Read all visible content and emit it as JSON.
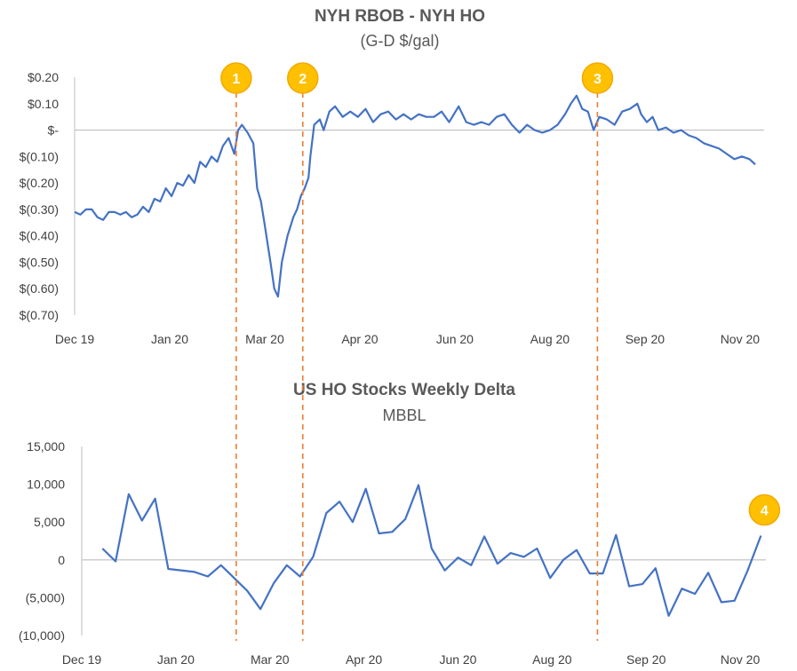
{
  "colors": {
    "line": "#4472C4",
    "marker_line": "#ED7D31",
    "badge_fill": "#FFC000",
    "badge_stroke": "#F2A900",
    "axis": "#BFBFBF",
    "text": "#595959"
  },
  "event_markers": [
    {
      "label": "1",
      "date": "2020-02-24"
    },
    {
      "label": "2",
      "date": "2020-03-30"
    },
    {
      "label": "3",
      "date": "2020-09-01"
    }
  ],
  "chart_data": [
    {
      "type": "line",
      "title": "NYH RBOB - NYH HO",
      "subtitle": "(G-D $/gal)",
      "x_range": [
        "2019-12-01",
        "2020-11-23"
      ],
      "x_ticks": [
        {
          "date": "2019-12-01",
          "label": "Dec 19"
        },
        {
          "date": "2020-01-20",
          "label": "Jan 20"
        },
        {
          "date": "2020-03-10",
          "label": "Mar 20"
        },
        {
          "date": "2020-04-29",
          "label": "Apr 20"
        },
        {
          "date": "2020-06-18",
          "label": "Jun 20"
        },
        {
          "date": "2020-08-07",
          "label": "Aug 20"
        },
        {
          "date": "2020-09-26",
          "label": "Sep 20"
        },
        {
          "date": "2020-11-15",
          "label": "Nov 20"
        }
      ],
      "ylim": [
        -0.7,
        0.2
      ],
      "y_ticks": [
        {
          "value": 0.2,
          "label": "$0.20"
        },
        {
          "value": 0.1,
          "label": "$0.10"
        },
        {
          "value": 0.0,
          "label": "$-"
        },
        {
          "value": -0.1,
          "label": "$(0.10)"
        },
        {
          "value": -0.2,
          "label": "$(0.20)"
        },
        {
          "value": -0.3,
          "label": "$(0.30)"
        },
        {
          "value": -0.4,
          "label": "$(0.40)"
        },
        {
          "value": -0.5,
          "label": "$(0.50)"
        },
        {
          "value": -0.6,
          "label": "$(0.60)"
        },
        {
          "value": -0.7,
          "label": "$(0.70)"
        }
      ],
      "grid": false,
      "legend": "none",
      "series": [
        {
          "points": [
            [
              "2019-12-01",
              -0.31
            ],
            [
              "2019-12-04",
              -0.32
            ],
            [
              "2019-12-07",
              -0.3
            ],
            [
              "2019-12-10",
              -0.3
            ],
            [
              "2019-12-13",
              -0.33
            ],
            [
              "2019-12-16",
              -0.34
            ],
            [
              "2019-12-19",
              -0.31
            ],
            [
              "2019-12-22",
              -0.31
            ],
            [
              "2019-12-25",
              -0.32
            ],
            [
              "2019-12-28",
              -0.31
            ],
            [
              "2019-12-31",
              -0.33
            ],
            [
              "2020-01-03",
              -0.32
            ],
            [
              "2020-01-06",
              -0.29
            ],
            [
              "2020-01-09",
              -0.31
            ],
            [
              "2020-01-12",
              -0.26
            ],
            [
              "2020-01-15",
              -0.27
            ],
            [
              "2020-01-18",
              -0.22
            ],
            [
              "2020-01-21",
              -0.25
            ],
            [
              "2020-01-24",
              -0.2
            ],
            [
              "2020-01-27",
              -0.21
            ],
            [
              "2020-01-30",
              -0.17
            ],
            [
              "2020-02-02",
              -0.2
            ],
            [
              "2020-02-05",
              -0.12
            ],
            [
              "2020-02-08",
              -0.14
            ],
            [
              "2020-02-11",
              -0.1
            ],
            [
              "2020-02-14",
              -0.12
            ],
            [
              "2020-02-17",
              -0.06
            ],
            [
              "2020-02-20",
              -0.03
            ],
            [
              "2020-02-23",
              -0.09
            ],
            [
              "2020-02-25",
              0.0
            ],
            [
              "2020-02-27",
              0.02
            ],
            [
              "2020-03-01",
              -0.01
            ],
            [
              "2020-03-04",
              -0.05
            ],
            [
              "2020-03-06",
              -0.22
            ],
            [
              "2020-03-08",
              -0.27
            ],
            [
              "2020-03-10",
              -0.36
            ],
            [
              "2020-03-13",
              -0.5
            ],
            [
              "2020-03-15",
              -0.6
            ],
            [
              "2020-03-17",
              -0.63
            ],
            [
              "2020-03-19",
              -0.5
            ],
            [
              "2020-03-22",
              -0.4
            ],
            [
              "2020-03-25",
              -0.33
            ],
            [
              "2020-03-27",
              -0.3
            ],
            [
              "2020-03-29",
              -0.25
            ],
            [
              "2020-03-31",
              -0.22
            ],
            [
              "2020-04-02",
              -0.18
            ],
            [
              "2020-04-03",
              -0.1
            ],
            [
              "2020-04-05",
              0.02
            ],
            [
              "2020-04-08",
              0.04
            ],
            [
              "2020-04-10",
              0.0
            ],
            [
              "2020-04-13",
              0.07
            ],
            [
              "2020-04-16",
              0.09
            ],
            [
              "2020-04-20",
              0.05
            ],
            [
              "2020-04-24",
              0.07
            ],
            [
              "2020-04-28",
              0.05
            ],
            [
              "2020-05-02",
              0.08
            ],
            [
              "2020-05-06",
              0.03
            ],
            [
              "2020-05-10",
              0.06
            ],
            [
              "2020-05-14",
              0.07
            ],
            [
              "2020-05-18",
              0.04
            ],
            [
              "2020-05-22",
              0.06
            ],
            [
              "2020-05-26",
              0.04
            ],
            [
              "2020-05-30",
              0.06
            ],
            [
              "2020-06-03",
              0.05
            ],
            [
              "2020-06-07",
              0.05
            ],
            [
              "2020-06-11",
              0.07
            ],
            [
              "2020-06-15",
              0.03
            ],
            [
              "2020-06-20",
              0.09
            ],
            [
              "2020-06-24",
              0.03
            ],
            [
              "2020-06-28",
              0.02
            ],
            [
              "2020-07-02",
              0.03
            ],
            [
              "2020-07-06",
              0.02
            ],
            [
              "2020-07-10",
              0.05
            ],
            [
              "2020-07-14",
              0.06
            ],
            [
              "2020-07-18",
              0.02
            ],
            [
              "2020-07-22",
              -0.01
            ],
            [
              "2020-07-26",
              0.02
            ],
            [
              "2020-07-30",
              0.0
            ],
            [
              "2020-08-03",
              -0.01
            ],
            [
              "2020-08-07",
              0.0
            ],
            [
              "2020-08-11",
              0.02
            ],
            [
              "2020-08-15",
              0.06
            ],
            [
              "2020-08-18",
              0.1
            ],
            [
              "2020-08-21",
              0.13
            ],
            [
              "2020-08-24",
              0.08
            ],
            [
              "2020-08-27",
              0.07
            ],
            [
              "2020-08-30",
              0.0
            ],
            [
              "2020-09-02",
              0.05
            ],
            [
              "2020-09-06",
              0.04
            ],
            [
              "2020-09-10",
              0.02
            ],
            [
              "2020-09-14",
              0.07
            ],
            [
              "2020-09-18",
              0.08
            ],
            [
              "2020-09-22",
              0.1
            ],
            [
              "2020-09-24",
              0.06
            ],
            [
              "2020-09-27",
              0.03
            ],
            [
              "2020-09-30",
              0.05
            ],
            [
              "2020-10-03",
              0.0
            ],
            [
              "2020-10-07",
              0.01
            ],
            [
              "2020-10-11",
              -0.01
            ],
            [
              "2020-10-15",
              0.0
            ],
            [
              "2020-10-19",
              -0.02
            ],
            [
              "2020-10-23",
              -0.03
            ],
            [
              "2020-10-27",
              -0.05
            ],
            [
              "2020-10-31",
              -0.06
            ],
            [
              "2020-11-04",
              -0.07
            ],
            [
              "2020-11-08",
              -0.09
            ],
            [
              "2020-11-12",
              -0.11
            ],
            [
              "2020-11-16",
              -0.1
            ],
            [
              "2020-11-20",
              -0.11
            ],
            [
              "2020-11-23",
              -0.13
            ]
          ]
        }
      ]
    },
    {
      "type": "line",
      "title": "US HO Stocks Weekly Delta",
      "subtitle": "MBBL",
      "x_range": [
        "2019-12-01",
        "2020-11-23"
      ],
      "x_ticks": [
        {
          "date": "2019-12-01",
          "label": "Dec 19"
        },
        {
          "date": "2020-01-20",
          "label": "Jan 20"
        },
        {
          "date": "2020-03-10",
          "label": "Mar 20"
        },
        {
          "date": "2020-04-29",
          "label": "Apr 20"
        },
        {
          "date": "2020-06-18",
          "label": "Jun 20"
        },
        {
          "date": "2020-08-07",
          "label": "Aug 20"
        },
        {
          "date": "2020-09-26",
          "label": "Sep 20"
        },
        {
          "date": "2020-11-15",
          "label": "Nov 20"
        }
      ],
      "ylim": [
        -10000,
        15000
      ],
      "y_ticks": [
        {
          "value": 15000,
          "label": "15,000"
        },
        {
          "value": 10000,
          "label": "10,000"
        },
        {
          "value": 5000,
          "label": "5,000"
        },
        {
          "value": 0,
          "label": "0"
        },
        {
          "value": -5000,
          "label": "(5,000)"
        },
        {
          "value": -10000,
          "label": "(10,000)"
        }
      ],
      "grid": false,
      "legend": "none",
      "series": [
        {
          "points": [
            [
              "2019-12-12",
              1500
            ],
            [
              "2019-12-19",
              -200
            ],
            [
              "2019-12-26",
              8700
            ],
            [
              "2020-01-02",
              5200
            ],
            [
              "2020-01-09",
              8100
            ],
            [
              "2020-01-16",
              -1200
            ],
            [
              "2020-01-30",
              -1600
            ],
            [
              "2020-02-06",
              -2200
            ],
            [
              "2020-02-13",
              -700
            ],
            [
              "2020-02-20",
              -2400
            ],
            [
              "2020-02-27",
              -4100
            ],
            [
              "2020-03-05",
              -6500
            ],
            [
              "2020-03-12",
              -3100
            ],
            [
              "2020-03-19",
              -700
            ],
            [
              "2020-03-26",
              -2200
            ],
            [
              "2020-04-02",
              400
            ],
            [
              "2020-04-09",
              6200
            ],
            [
              "2020-04-16",
              7700
            ],
            [
              "2020-04-23",
              5000
            ],
            [
              "2020-04-30",
              9400
            ],
            [
              "2020-05-07",
              3500
            ],
            [
              "2020-05-14",
              3700
            ],
            [
              "2020-05-21",
              5400
            ],
            [
              "2020-05-28",
              9900
            ],
            [
              "2020-06-04",
              1500
            ],
            [
              "2020-06-11",
              -1400
            ],
            [
              "2020-06-18",
              300
            ],
            [
              "2020-06-25",
              -700
            ],
            [
              "2020-07-02",
              3100
            ],
            [
              "2020-07-09",
              -500
            ],
            [
              "2020-07-16",
              900
            ],
            [
              "2020-07-23",
              400
            ],
            [
              "2020-07-30",
              1500
            ],
            [
              "2020-08-06",
              -2400
            ],
            [
              "2020-08-13",
              0
            ],
            [
              "2020-08-20",
              1300
            ],
            [
              "2020-08-27",
              -1800
            ],
            [
              "2020-09-03",
              -1800
            ],
            [
              "2020-09-10",
              3300
            ],
            [
              "2020-09-17",
              -3500
            ],
            [
              "2020-09-24",
              -3200
            ],
            [
              "2020-10-01",
              -1100
            ],
            [
              "2020-10-08",
              -7400
            ],
            [
              "2020-10-15",
              -3800
            ],
            [
              "2020-10-22",
              -4500
            ],
            [
              "2020-10-29",
              -1700
            ],
            [
              "2020-11-05",
              -5600
            ],
            [
              "2020-11-12",
              -5400
            ],
            [
              "2020-11-19",
              -1400
            ],
            [
              "2020-11-26",
              3200
            ]
          ]
        }
      ],
      "annotations": [
        {
          "label": "4",
          "date": "2020-11-26",
          "value": 3200
        }
      ]
    }
  ]
}
